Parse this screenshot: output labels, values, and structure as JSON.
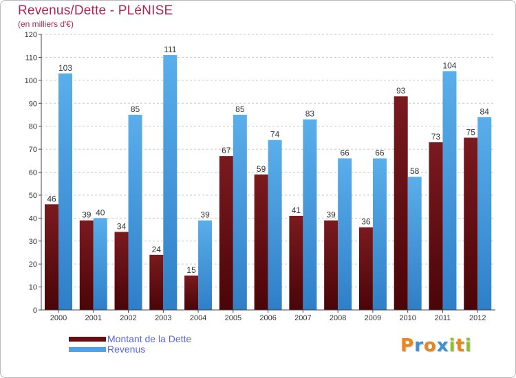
{
  "header": {
    "title": "Revenus/Dette - PLéNISE",
    "subtitle": "(en milliers d'€)"
  },
  "chart_data": {
    "type": "bar",
    "title": "Revenus/Dette - PLéNISE",
    "subtitle": "(en milliers d'€)",
    "xlabel": "",
    "ylabel": "",
    "ylim": [
      0,
      120
    ],
    "yticks": [
      0,
      10,
      20,
      30,
      40,
      50,
      60,
      70,
      80,
      90,
      100,
      110,
      120
    ],
    "grid": true,
    "legend_position": "bottom-left",
    "categories": [
      "2000",
      "2001",
      "2002",
      "2003",
      "2004",
      "2005",
      "2006",
      "2007",
      "2008",
      "2009",
      "2010",
      "2011",
      "2012"
    ],
    "series": [
      {
        "name": "Montant de la Dette",
        "color": "#7a1a1f",
        "color_dark": "#4a0508",
        "values": [
          46,
          39,
          34,
          24,
          15,
          67,
          59,
          41,
          39,
          36,
          93,
          73,
          75
        ]
      },
      {
        "name": "Revenus",
        "color": "#5aaeea",
        "color_dark": "#2f7fc8",
        "values": [
          103,
          40,
          85,
          111,
          39,
          85,
          74,
          83,
          66,
          66,
          58,
          104,
          84
        ]
      }
    ]
  },
  "legend": {
    "items": [
      {
        "label": "Montant de la Dette",
        "color": "#6b0d10"
      },
      {
        "label": "Revenus",
        "color": "#4aa3e6"
      }
    ]
  },
  "logo": {
    "text": "Proxiti",
    "letters": [
      {
        "ch": "P",
        "color": "#e8861a"
      },
      {
        "ch": "r",
        "color": "#3f8fd8"
      },
      {
        "ch": "o",
        "color": "#e8861a"
      },
      {
        "ch": "x",
        "color": "#3f8fd8"
      },
      {
        "ch": "i",
        "color": "#8fbf2a"
      },
      {
        "ch": "t",
        "color": "#e8861a"
      },
      {
        "ch": "i",
        "color": "#8fbf2a"
      }
    ]
  }
}
